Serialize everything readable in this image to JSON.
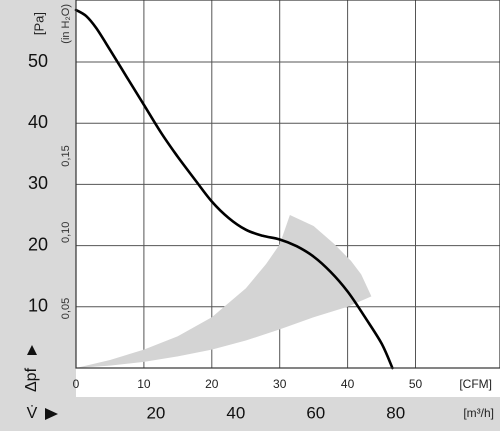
{
  "chart_data": {
    "type": "line",
    "title": "",
    "colors": {
      "curve": "#000000",
      "operating_region": "#d4d4d4",
      "band": "#d9d9d9"
    },
    "y_axis_main": {
      "unit": "[Pa]",
      "range": [
        0,
        60
      ],
      "ticks": [
        "10",
        "20",
        "30",
        "40",
        "50"
      ],
      "symbol_label": "Δpf"
    },
    "y_axis_secondary": {
      "unit": "(in H₂O)",
      "range_inH2O": [
        0,
        0.241
      ],
      "ticks": [
        {
          "value": 0.05,
          "label": "0,05"
        },
        {
          "value": 0.1,
          "label": "0,10"
        },
        {
          "value": 0.15,
          "label": "0,15"
        }
      ]
    },
    "x_axis_cfm": {
      "unit": "[CFM]",
      "range": [
        0,
        50
      ],
      "ticks": [
        "0",
        "10",
        "20",
        "30",
        "40",
        "50"
      ]
    },
    "x_axis_m3h": {
      "unit": "[m³/h]",
      "symbol_label": "V̇",
      "ticks": [
        "20",
        "40",
        "60",
        "80"
      ]
    },
    "grid": true,
    "series": [
      {
        "x_cfm": [
          0,
          1.5,
          3,
          5,
          7.5,
          10,
          12.5,
          15,
          17.5,
          20,
          22.5,
          25,
          27.5,
          30,
          32.5,
          35,
          37.5,
          40,
          42.5,
          45,
          46.6
        ],
        "y_pa": [
          58.5,
          57.5,
          55.5,
          52,
          47.5,
          43,
          38.5,
          34.5,
          30.8,
          27.2,
          24.5,
          22.6,
          21.6,
          21.0,
          19.9,
          18.2,
          15.7,
          12.5,
          8.4,
          4.0,
          0
        ]
      }
    ],
    "operating_region": {
      "upper_x_cfm": [
        0,
        5,
        10,
        15,
        20,
        25,
        28,
        30,
        31.5
      ],
      "upper_y_pa": [
        0,
        1.3,
        3.0,
        5.2,
        8.3,
        13.0,
        17.0,
        20.2,
        25.0
      ],
      "far_x_cfm": [
        31.5,
        35,
        38,
        40.5,
        42,
        43.5
      ],
      "far_y_pa": [
        25.0,
        23.2,
        20.3,
        17.5,
        15.3,
        11.7
      ],
      "lower_x_cfm": [
        43.5,
        40,
        35,
        30,
        25,
        20,
        15,
        10,
        5,
        0
      ],
      "lower_y_pa": [
        11.7,
        10.0,
        8.3,
        6.3,
        4.5,
        3.0,
        1.9,
        1.0,
        0.4,
        0
      ]
    }
  }
}
